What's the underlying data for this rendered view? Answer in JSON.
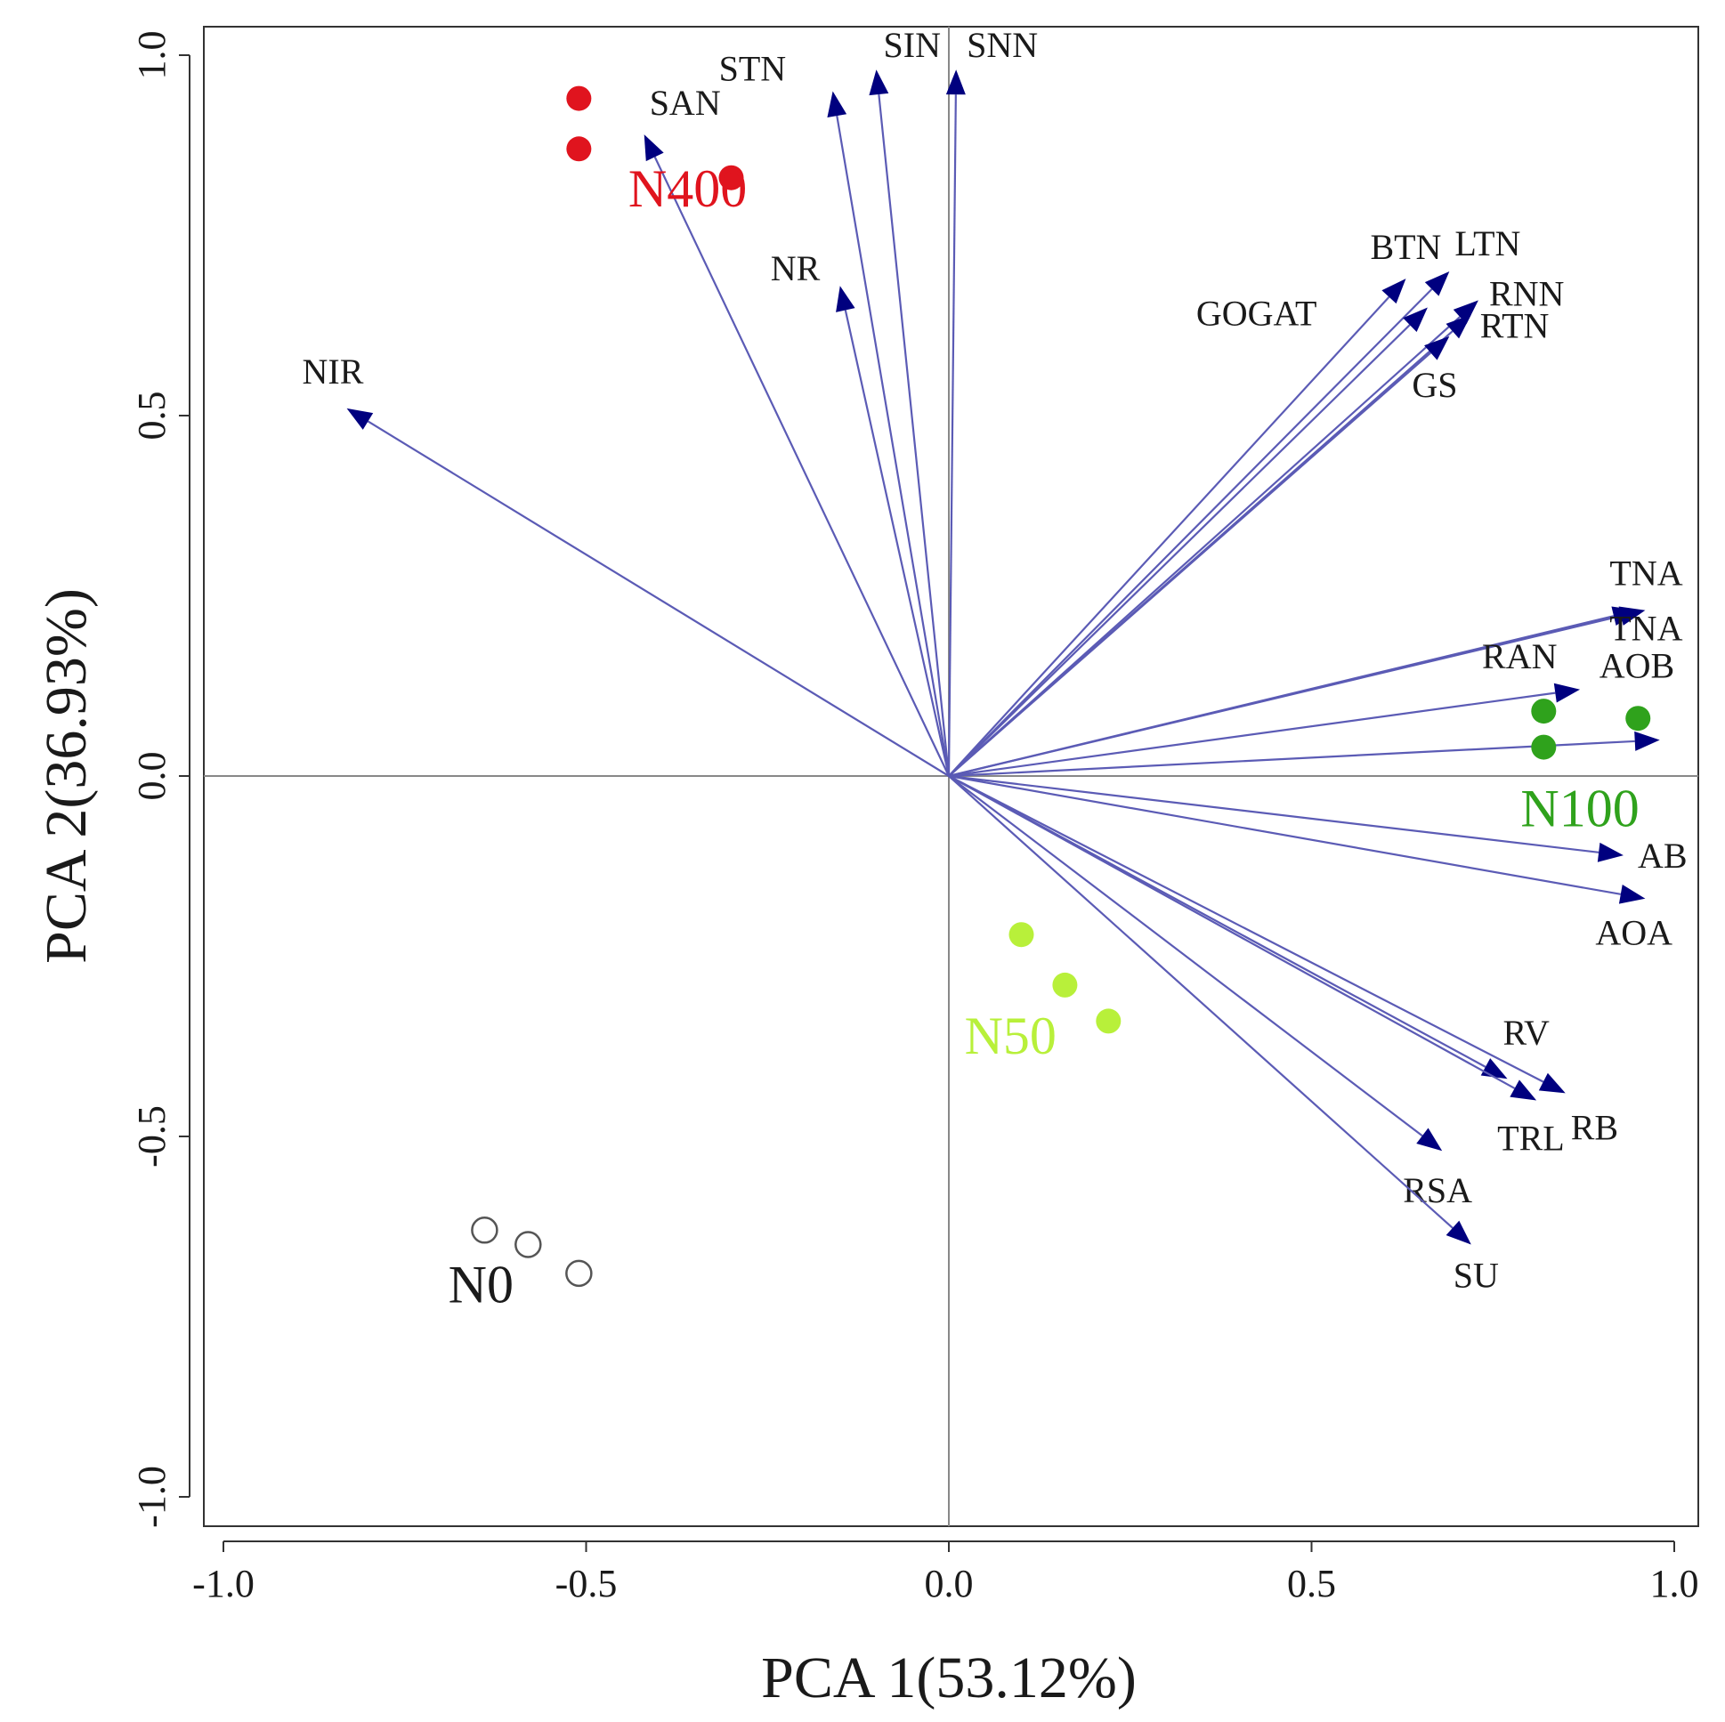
{
  "chart_data": {
    "type": "scatter",
    "subtype": "pca-biplot",
    "title": "",
    "xlabel": "PCA 1(53.12%)",
    "ylabel": "PCA 2(36.93%)",
    "xlim": [
      -1.03,
      1.03
    ],
    "ylim": [
      -1.03,
      1.03
    ],
    "xticks": [
      -1.0,
      -0.5,
      0.0,
      0.5,
      1.0
    ],
    "yticks": [
      -1.0,
      -0.5,
      0.0,
      0.5,
      1.0
    ],
    "xtick_labels": [
      "-1.0",
      "-0.5",
      "0.0",
      "0.5",
      "1.0"
    ],
    "ytick_labels": [
      "-1.0",
      "-0.5",
      "0.0",
      "0.5",
      "1.0"
    ],
    "zero_lines": true,
    "vectors": [
      {
        "name": "SAN",
        "x": -0.42,
        "y": 0.89
      },
      {
        "name": "STN",
        "x": -0.16,
        "y": 0.95
      },
      {
        "name": "SIN",
        "x": -0.1,
        "y": 0.98
      },
      {
        "name": "SNN",
        "x": 0.01,
        "y": 0.98
      },
      {
        "name": "NR",
        "x": -0.15,
        "y": 0.68
      },
      {
        "name": "NIR",
        "x": -0.83,
        "y": 0.51
      },
      {
        "name": "BTN",
        "x": 0.63,
        "y": 0.69
      },
      {
        "name": "LTN",
        "x": 0.69,
        "y": 0.7
      },
      {
        "name": "RNN",
        "x": 0.73,
        "y": 0.66
      },
      {
        "name": "GOGAT",
        "x": 0.66,
        "y": 0.65
      },
      {
        "name": "RTN",
        "x": 0.72,
        "y": 0.64
      },
      {
        "name": "GS",
        "x": 0.69,
        "y": 0.61
      },
      {
        "name": "TNA",
        "x": 0.96,
        "y": 0.23
      },
      {
        "name": "TNA",
        "x": 0.95,
        "y": 0.23
      },
      {
        "name": "RAN",
        "x": 0.87,
        "y": 0.12
      },
      {
        "name": "AOB",
        "x": 0.98,
        "y": 0.05
      },
      {
        "name": "AB",
        "x": 0.93,
        "y": -0.11
      },
      {
        "name": "AOA",
        "x": 0.96,
        "y": -0.17
      },
      {
        "name": "RV",
        "x": 0.77,
        "y": -0.42
      },
      {
        "name": "RB",
        "x": 0.85,
        "y": -0.44
      },
      {
        "name": "TRL",
        "x": 0.81,
        "y": -0.45
      },
      {
        "name": "RSA",
        "x": 0.68,
        "y": -0.52
      },
      {
        "name": "SU",
        "x": 0.72,
        "y": -0.65
      }
    ],
    "groups": [
      {
        "name": "N400",
        "color": "#e0141e",
        "filled": true,
        "points": [
          [
            -0.51,
            0.94
          ],
          [
            -0.51,
            0.87
          ],
          [
            -0.3,
            0.83
          ]
        ]
      },
      {
        "name": "N100",
        "color": "#2fa21c",
        "filled": true,
        "points": [
          [
            0.82,
            0.09
          ],
          [
            0.82,
            0.04
          ],
          [
            0.95,
            0.08
          ]
        ]
      },
      {
        "name": "N50",
        "color": "#b8f03a",
        "filled": true,
        "points": [
          [
            0.1,
            -0.22
          ],
          [
            0.16,
            -0.29
          ],
          [
            0.22,
            -0.34
          ]
        ]
      },
      {
        "name": "N0",
        "color": "#555555",
        "filled": false,
        "points": [
          [
            -0.64,
            -0.63
          ],
          [
            -0.58,
            -0.65
          ],
          [
            -0.51,
            -0.69
          ]
        ]
      }
    ],
    "arrow_color": "#00007f",
    "arrow_line_color": "#5b5bb5"
  }
}
